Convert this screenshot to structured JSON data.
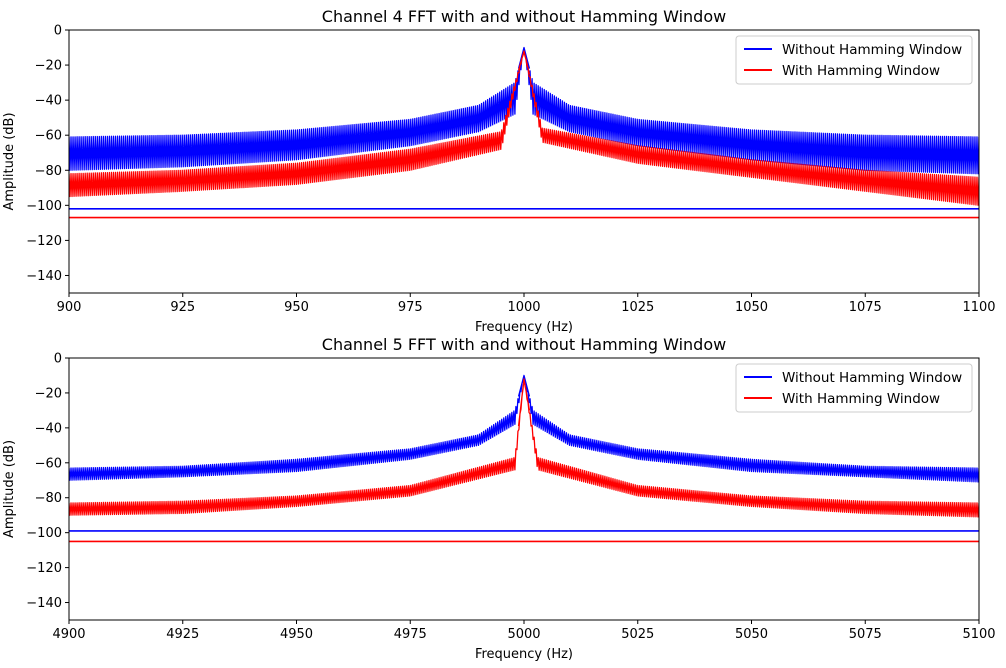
{
  "chart_data": [
    {
      "type": "line",
      "title": "Channel 4 FFT with and without Hamming Window",
      "xlabel": "Frequency (Hz)",
      "ylabel": "Amplitude (dB)",
      "xlim": [
        900,
        1100
      ],
      "ylim": [
        -150,
        0
      ],
      "xticks": [
        900,
        925,
        950,
        975,
        1000,
        1025,
        1050,
        1075,
        1100
      ],
      "yticks": [
        0,
        -20,
        -40,
        -60,
        -80,
        -100,
        -120,
        -140
      ],
      "grid": false,
      "legend_position": "top-right",
      "peak_frequency": 1000,
      "series": [
        {
          "name": "Without Hamming Window",
          "color": "#0000ff",
          "peak": -10,
          "floor": -102,
          "envelope": [
            [
              900,
              -61,
              -80
            ],
            [
              925,
              -60,
              -78
            ],
            [
              950,
              -57,
              -74
            ],
            [
              975,
              -51,
              -66
            ],
            [
              990,
              -43,
              -58
            ],
            [
              998,
              -30,
              -48
            ],
            [
              1000,
              -10,
              -10
            ],
            [
              1002,
              -30,
              -48
            ],
            [
              1010,
              -43,
              -58
            ],
            [
              1025,
              -51,
              -66
            ],
            [
              1050,
              -57,
              -74
            ],
            [
              1075,
              -60,
              -80
            ],
            [
              1100,
              -61,
              -82
            ]
          ]
        },
        {
          "name": "With Hamming Window",
          "color": "#ff0000",
          "peak": -12,
          "floor": -107,
          "envelope": [
            [
              900,
              -82,
              -95
            ],
            [
              925,
              -80,
              -92
            ],
            [
              950,
              -76,
              -88
            ],
            [
              975,
              -68,
              -80
            ],
            [
              995,
              -58,
              -68
            ],
            [
              1000,
              -12,
              -12
            ],
            [
              1004,
              -56,
              -64
            ],
            [
              1025,
              -66,
              -76
            ],
            [
              1050,
              -74,
              -84
            ],
            [
              1075,
              -80,
              -92
            ],
            [
              1100,
              -84,
              -100
            ]
          ]
        }
      ]
    },
    {
      "type": "line",
      "title": "Channel 5 FFT with and without Hamming Window",
      "xlabel": "Frequency (Hz)",
      "ylabel": "Amplitude (dB)",
      "xlim": [
        4900,
        5100
      ],
      "ylim": [
        -150,
        0
      ],
      "xticks": [
        4900,
        4925,
        4950,
        4975,
        5000,
        5025,
        5050,
        5075,
        5100
      ],
      "yticks": [
        0,
        -20,
        -40,
        -60,
        -80,
        -100,
        -120,
        -140
      ],
      "grid": false,
      "legend_position": "top-right",
      "peak_frequency": 5000,
      "series": [
        {
          "name": "Without Hamming Window",
          "color": "#0000ff",
          "peak": -10,
          "floor": -99,
          "envelope": [
            [
              4900,
              -63,
              -70
            ],
            [
              4925,
              -62,
              -68
            ],
            [
              4950,
              -58,
              -65
            ],
            [
              4975,
              -52,
              -58
            ],
            [
              4990,
              -44,
              -50
            ],
            [
              4998,
              -30,
              -38
            ],
            [
              5000,
              -10,
              -10
            ],
            [
              5002,
              -30,
              -38
            ],
            [
              5010,
              -44,
              -50
            ],
            [
              5025,
              -52,
              -58
            ],
            [
              5050,
              -58,
              -65
            ],
            [
              5075,
              -62,
              -68
            ],
            [
              5100,
              -63,
              -71
            ]
          ]
        },
        {
          "name": "With Hamming Window",
          "color": "#ff0000",
          "peak": -12,
          "floor": -105,
          "envelope": [
            [
              4900,
              -83,
              -90
            ],
            [
              4925,
              -82,
              -89
            ],
            [
              4950,
              -79,
              -85
            ],
            [
              4975,
              -73,
              -79
            ],
            [
              4998,
              -57,
              -64
            ],
            [
              5000,
              -12,
              -12
            ],
            [
              5003,
              -57,
              -64
            ],
            [
              5025,
              -73,
              -79
            ],
            [
              5050,
              -79,
              -85
            ],
            [
              5075,
              -82,
              -89
            ],
            [
              5100,
              -83,
              -91
            ]
          ]
        }
      ]
    }
  ]
}
